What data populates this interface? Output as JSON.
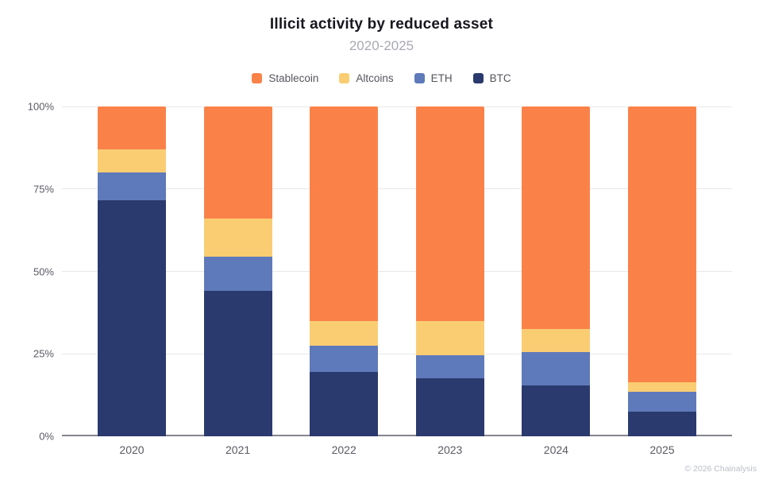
{
  "header": {
    "title": "Illicit activity by reduced asset",
    "subtitle": "2020-2025"
  },
  "footer": {
    "copyright": "© 2026 Chainalysis"
  },
  "chart_data": {
    "type": "bar",
    "stacked": true,
    "unit": "%",
    "title": "Illicit activity by reduced asset",
    "subtitle": "2020-2025",
    "categories": [
      "2020",
      "2021",
      "2022",
      "2023",
      "2024",
      "2025"
    ],
    "series": [
      {
        "name": "BTC",
        "color": "#2b3a6e",
        "values": [
          71.5,
          44,
          19.5,
          17.5,
          15.5,
          7.5
        ]
      },
      {
        "name": "ETH",
        "color": "#5f7abb",
        "values": [
          8.5,
          10.5,
          8,
          7,
          10,
          6
        ]
      },
      {
        "name": "Altcoins",
        "color": "#facd73",
        "values": [
          7,
          11.5,
          7.5,
          10.5,
          7,
          3
        ]
      },
      {
        "name": "Stablecoin",
        "color": "#fa8249",
        "values": [
          13,
          34,
          65,
          65,
          67.5,
          83.5
        ]
      }
    ],
    "legend_order": [
      "Stablecoin",
      "Altcoins",
      "ETH",
      "BTC"
    ],
    "legend_position": "top",
    "y_ticks": [
      {
        "value": 0,
        "label": "0%"
      },
      {
        "value": 25,
        "label": "25%"
      },
      {
        "value": 50,
        "label": "50%"
      },
      {
        "value": 75,
        "label": "75%"
      },
      {
        "value": 100,
        "label": "100%"
      }
    ],
    "ylim": [
      0,
      100
    ],
    "grid": true
  }
}
